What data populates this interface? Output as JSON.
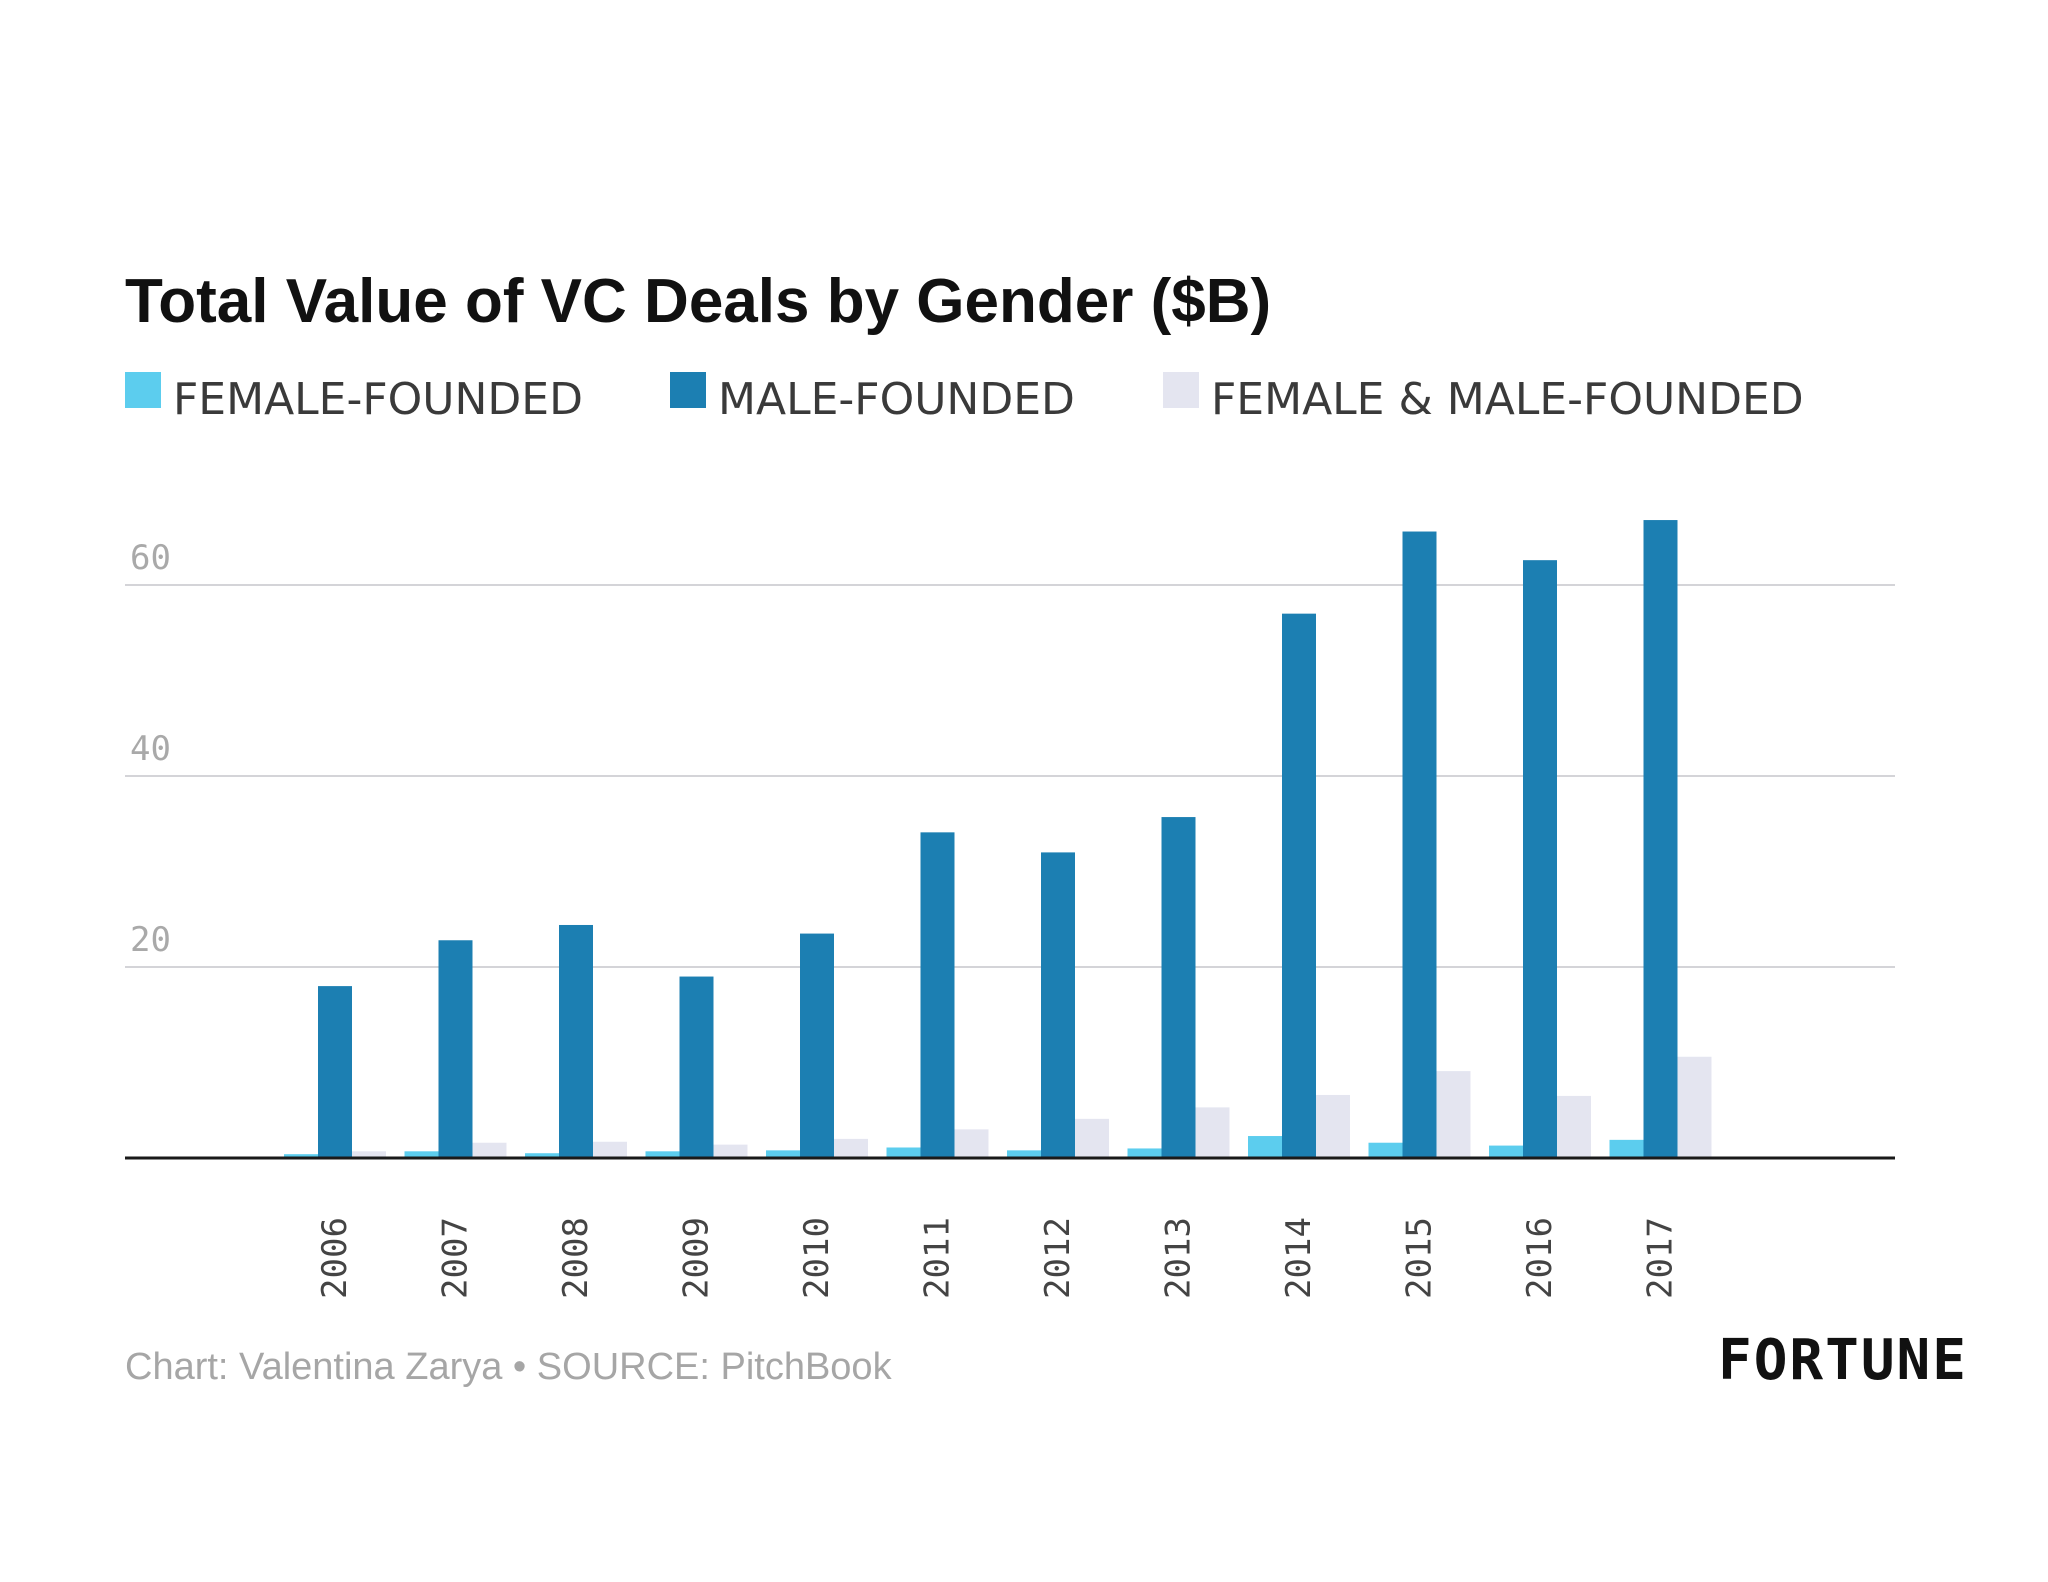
{
  "chart_data": {
    "type": "bar",
    "title": "Total Value of VC Deals by Gender ($B)",
    "xlabel": "",
    "ylabel": "",
    "ylim": [
      0,
      70
    ],
    "yticks": [
      "20",
      "40",
      "60"
    ],
    "grid": true,
    "legend_position": "top",
    "categories": [
      "2006",
      "2007",
      "2008",
      "2009",
      "2010",
      "2011",
      "2012",
      "2013",
      "2014",
      "2015",
      "2016",
      "2017"
    ],
    "series": [
      {
        "name": "FEMALE-FOUNDED",
        "color": "#5ccdee",
        "values": [
          0.4,
          0.7,
          0.5,
          0.7,
          0.8,
          1.1,
          0.8,
          1.0,
          2.3,
          1.6,
          1.3,
          1.9
        ]
      },
      {
        "name": "MALE-FOUNDED",
        "color": "#1c7fb2",
        "values": [
          18.0,
          22.8,
          24.4,
          19.0,
          23.5,
          34.1,
          32.0,
          35.7,
          57.0,
          65.6,
          62.6,
          66.8
        ]
      },
      {
        "name": "FEMALE & MALE-FOUNDED",
        "color": "#e4e5f0",
        "values": [
          0.7,
          1.6,
          1.7,
          1.4,
          2.0,
          3.0,
          4.1,
          5.3,
          6.6,
          9.1,
          6.5,
          10.6
        ]
      }
    ]
  },
  "footer": {
    "source": "Chart: Valentina Zarya • SOURCE: PitchBook",
    "brand": "FORTUNE"
  }
}
